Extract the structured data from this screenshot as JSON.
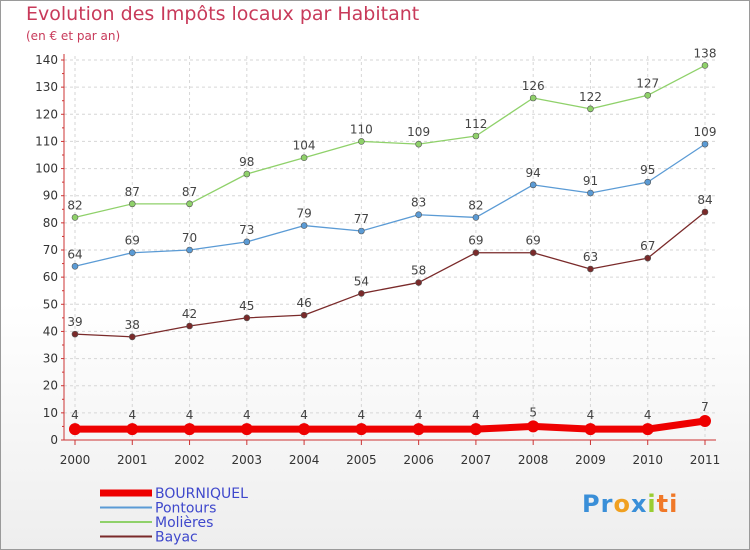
{
  "chart_data": {
    "type": "line",
    "title": "Evolution des Impôts locaux par Habitant",
    "subtitle": "(en € et par an)",
    "xlabel": "",
    "ylabel": "",
    "x": [
      "2000",
      "2001",
      "2002",
      "2003",
      "2004",
      "2005",
      "2006",
      "2007",
      "2008",
      "2009",
      "2010",
      "2011"
    ],
    "ylim": [
      0,
      140
    ],
    "yticks": [
      "0",
      "10",
      "20",
      "30",
      "40",
      "50",
      "60",
      "70",
      "80",
      "90",
      "100",
      "110",
      "120",
      "130",
      "140"
    ],
    "grid": true,
    "legend_position": "bottom-left",
    "series": [
      {
        "name": "BOURNIQUEL",
        "color": "#ee0000",
        "labels": [
          "4",
          "4",
          "4",
          "4",
          "4",
          "4",
          "4",
          "4",
          "5",
          "4",
          "4",
          "7"
        ],
        "values": [
          4,
          4,
          4,
          4,
          4,
          4,
          4,
          4,
          5,
          4,
          4,
          7
        ]
      },
      {
        "name": "Pontours",
        "color": "#5b9bd5",
        "labels": [
          "64",
          "69",
          "70",
          "73",
          "79",
          "77",
          "83",
          "82",
          "94",
          "91",
          "95",
          "109"
        ],
        "values": [
          64,
          69,
          70,
          73,
          79,
          77,
          83,
          82,
          94,
          91,
          95,
          109
        ]
      },
      {
        "name": "Molières",
        "color": "#8fd16a",
        "labels": [
          "82",
          "87",
          "87",
          "98",
          "104",
          "110",
          "109",
          "112",
          "126",
          "122",
          "127",
          "138"
        ],
        "values": [
          82,
          87,
          87,
          98,
          104,
          110,
          109,
          112,
          126,
          122,
          127,
          138
        ]
      },
      {
        "name": "Bayac",
        "color": "#7a2a2a",
        "labels": [
          "39",
          "38",
          "42",
          "45",
          "46",
          "54",
          "58",
          "69",
          "69",
          "63",
          "67",
          "84"
        ],
        "values": [
          39,
          38,
          42,
          45,
          46,
          54,
          58,
          69,
          69,
          63,
          67,
          84
        ]
      }
    ]
  },
  "logo": {
    "p1": "Pr",
    "p2": "o",
    "p3": "x",
    "p4": "i",
    "p5": "ti"
  }
}
